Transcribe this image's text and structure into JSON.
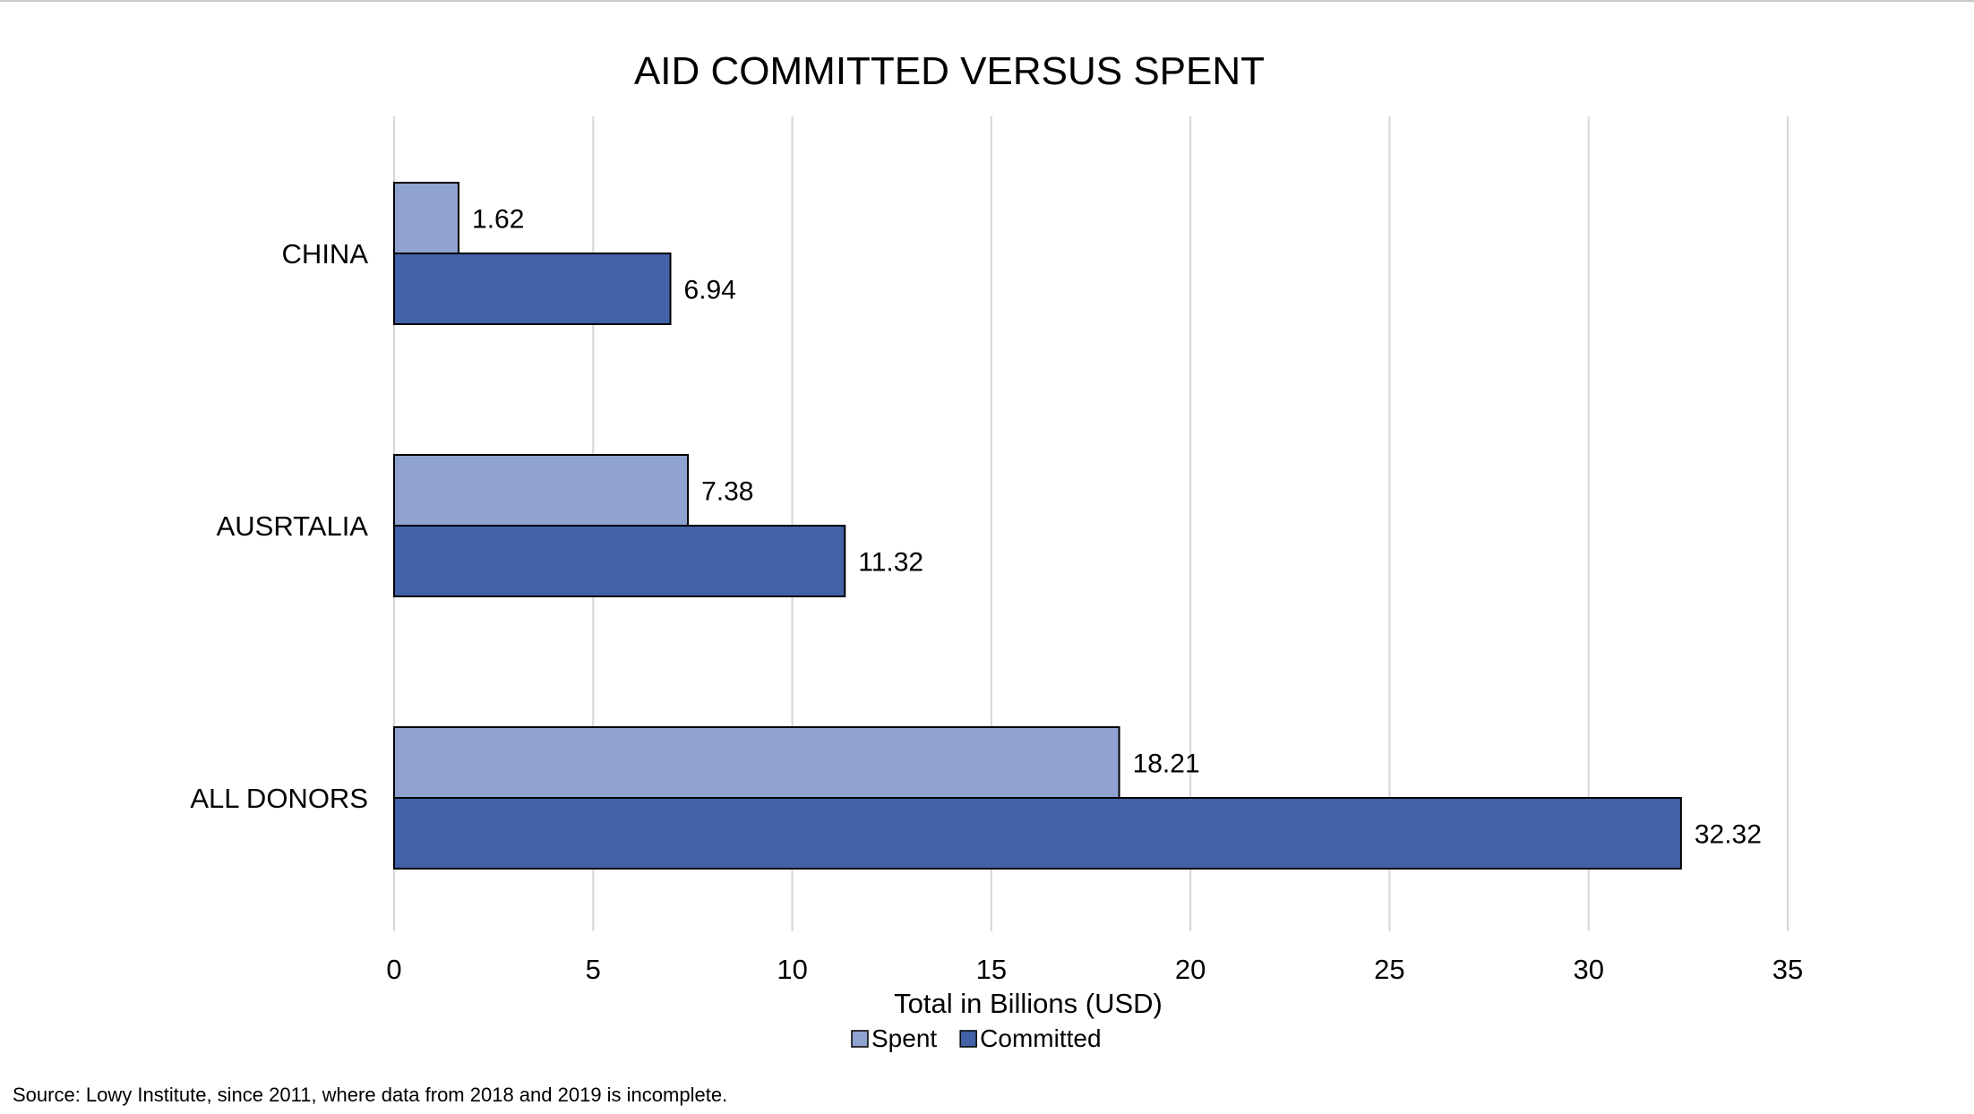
{
  "chart_data": {
    "type": "bar",
    "orientation": "horizontal",
    "title": "AID COMMITTED VERSUS SPENT",
    "xlabel": "Total in Billions (USD)",
    "ylabel": "",
    "categories": [
      "CHINA",
      "AUSRTALIA",
      "ALL DONORS"
    ],
    "series": [
      {
        "name": "Spent",
        "color": "#8FA2D0",
        "values": [
          1.62,
          7.38,
          18.21
        ]
      },
      {
        "name": "Committed",
        "color": "#4262A8",
        "values": [
          6.94,
          11.32,
          32.32
        ]
      }
    ],
    "xlim": [
      0,
      35
    ],
    "xticks": [
      0,
      5,
      10,
      15,
      20,
      25,
      30,
      35
    ],
    "grid": "vertical",
    "legend": "bottom-center",
    "data_labels": true
  },
  "source_note": "Source: Lowy Institute, since 2011, where data from 2018 and 2019 is incomplete."
}
